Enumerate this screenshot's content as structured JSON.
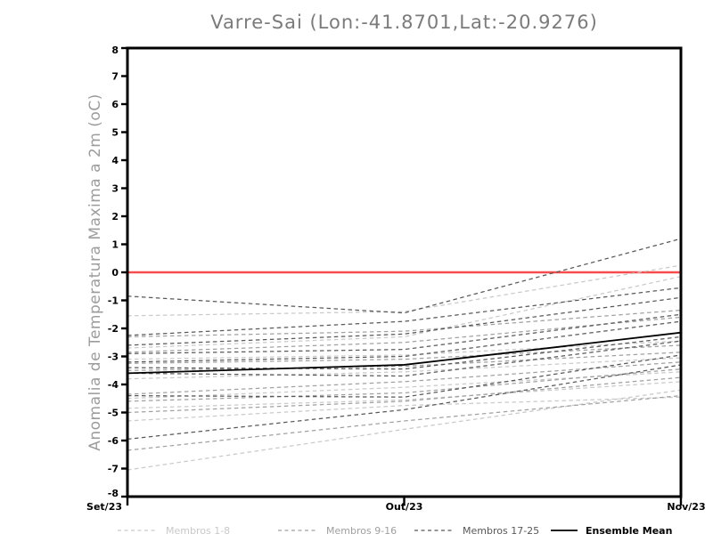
{
  "title": "Varre-Sai (Lon:-41.8701,Lat:-20.9276)",
  "y_axis_label": "Anomalia de Temperatura Maxima a 2m (oC)",
  "chart_data": {
    "type": "line",
    "title": "Varre-Sai (Lon:-41.8701,Lat:-20.9276)",
    "xlabel": "",
    "ylabel": "Anomalia de Temperatura Maxima a 2m (oC)",
    "ylim": [
      -8,
      8
    ],
    "ytick_step": 1,
    "grid": false,
    "legend_position": "bottom",
    "x_categories": [
      "Set/23",
      "Out/23",
      "Nov/23"
    ],
    "zero_line": {
      "value": 0,
      "color": "#f84c4c"
    },
    "axis_color": "#000000",
    "groups": [
      {
        "name": "Membros 1-8",
        "color": "#c9c9c9",
        "style": "dashed",
        "members": [
          [
            -1.55,
            -1.4,
            0.25
          ],
          [
            -2.7,
            -2.3,
            -0.15
          ],
          [
            -3.1,
            -2.95,
            -2.45
          ],
          [
            -3.8,
            -3.55,
            -3.05
          ],
          [
            -4.5,
            -4.1,
            -3.55
          ],
          [
            -4.85,
            -4.55,
            -3.9
          ],
          [
            -5.3,
            -4.75,
            -4.45
          ],
          [
            -7.05,
            -5.6,
            -4.2
          ]
        ]
      },
      {
        "name": "Membros 9-16",
        "color": "#a0a0a0",
        "style": "dashed",
        "members": [
          [
            -2.3,
            -2.1,
            -1.35
          ],
          [
            -2.85,
            -2.5,
            -1.6
          ],
          [
            -3.25,
            -3.1,
            -2.6
          ],
          [
            -3.5,
            -3.35,
            -2.85
          ],
          [
            -4.35,
            -3.9,
            -3.2
          ],
          [
            -4.6,
            -4.3,
            -3.45
          ],
          [
            -5.0,
            -4.6,
            -3.75
          ],
          [
            -6.35,
            -5.3,
            -4.4
          ]
        ]
      },
      {
        "name": "Membros 17-25",
        "color": "#585858",
        "style": "dashed",
        "members": [
          [
            -0.85,
            -1.45,
            1.2
          ],
          [
            -2.25,
            -1.75,
            -0.55
          ],
          [
            -2.6,
            -2.2,
            -0.9
          ],
          [
            -2.9,
            -2.75,
            -1.5
          ],
          [
            -3.2,
            -3.0,
            -1.75
          ],
          [
            -3.4,
            -3.45,
            -2.3
          ],
          [
            -3.6,
            -3.7,
            -2.45
          ],
          [
            -4.4,
            -4.45,
            -2.95
          ],
          [
            -5.95,
            -4.9,
            -3.3
          ]
        ]
      }
    ],
    "mean_series": {
      "name": "Ensemble Mean",
      "color": "#000000",
      "style": "solid",
      "values": [
        -3.6,
        -3.3,
        -2.15
      ]
    }
  },
  "legend": {
    "items": [
      {
        "label": "Membros 1-8",
        "color": "#c9c9c9",
        "style": "dashed"
      },
      {
        "label": "Membros 9-16",
        "color": "#a0a0a0",
        "style": "dashed"
      },
      {
        "label": "Membros 17-25",
        "color": "#585858",
        "style": "dashed"
      },
      {
        "label": "Ensemble Mean",
        "color": "#000000",
        "style": "solid"
      }
    ]
  }
}
